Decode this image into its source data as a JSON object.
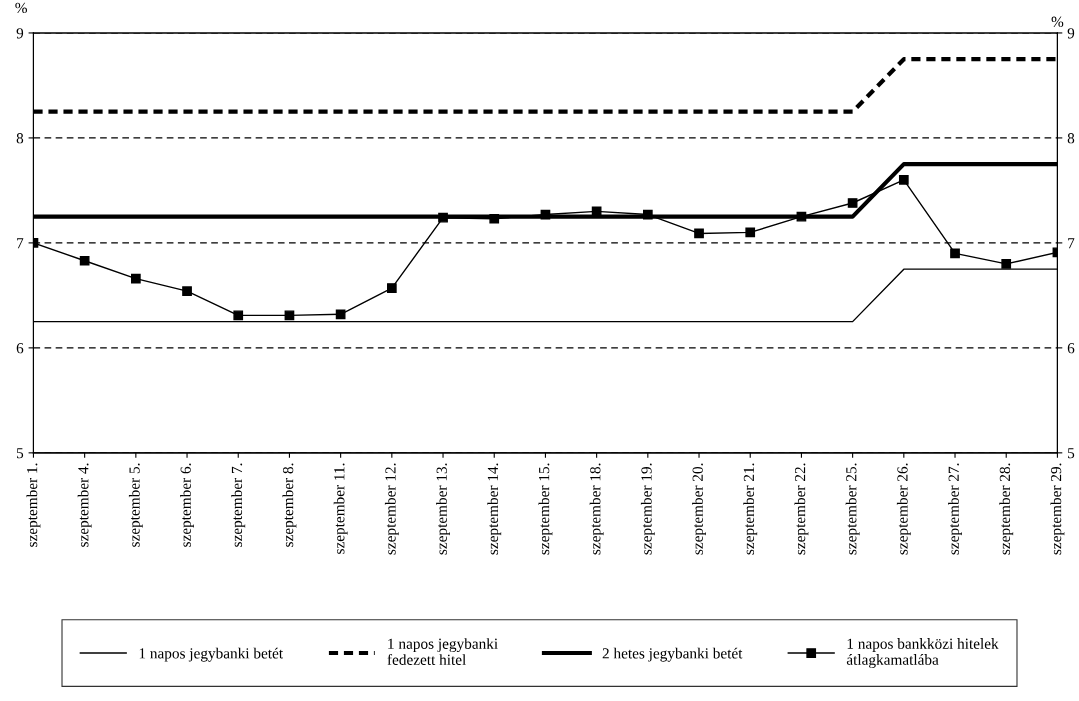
{
  "chart_data": {
    "type": "line",
    "ylabel": "%",
    "y2label": "%",
    "categories": [
      "szeptember 1.",
      "szeptember 4.",
      "szeptember 5.",
      "szeptember 6.",
      "szeptember 7.",
      "szeptember 8.",
      "szeptember 11.",
      "szeptember 12.",
      "szeptember 13.",
      "szeptember 14.",
      "szeptember 15.",
      "szeptember 18.",
      "szeptember 19.",
      "szeptember 20.",
      "szeptember 21.",
      "szeptember 22.",
      "szeptember 25.",
      "szeptember 26.",
      "szeptember 27.",
      "szeptember 28.",
      "szeptember 29."
    ],
    "series": [
      {
        "name": "1 napos jegybanki betét",
        "color": "#000000",
        "line_style": "solid",
        "marker": "none",
        "values": [
          6.25,
          6.25,
          6.25,
          6.25,
          6.25,
          6.25,
          6.25,
          6.25,
          6.25,
          6.25,
          6.25,
          6.25,
          6.25,
          6.25,
          6.25,
          6.25,
          6.25,
          6.75,
          6.75,
          6.75,
          6.75
        ]
      },
      {
        "name": "1 napos jegybanki fedezett hitel",
        "color": "#000000",
        "line_style": "dashed",
        "marker": "none",
        "values": [
          8.25,
          8.25,
          8.25,
          8.25,
          8.25,
          8.25,
          8.25,
          8.25,
          8.25,
          8.25,
          8.25,
          8.25,
          8.25,
          8.25,
          8.25,
          8.25,
          8.25,
          8.75,
          8.75,
          8.75,
          8.75
        ]
      },
      {
        "name": "2 hetes jegybanki betét",
        "color": "#000000",
        "line_style": "solid",
        "marker": "none",
        "values": [
          7.25,
          7.25,
          7.25,
          7.25,
          7.25,
          7.25,
          7.25,
          7.25,
          7.25,
          7.25,
          7.25,
          7.25,
          7.25,
          7.25,
          7.25,
          7.25,
          7.25,
          7.75,
          7.75,
          7.75,
          7.75
        ]
      },
      {
        "name": "1 napos bankközi hitelek átlagkamatlába",
        "color": "#000000",
        "line_style": "solid",
        "marker": "square",
        "values": [
          7.0,
          6.83,
          6.66,
          6.54,
          6.31,
          6.31,
          6.32,
          6.57,
          7.24,
          7.23,
          7.27,
          7.3,
          7.27,
          7.09,
          7.1,
          7.25,
          7.38,
          7.6,
          6.9,
          6.8,
          6.91
        ]
      }
    ],
    "ylim": [
      5,
      9
    ],
    "yticks": [
      5,
      6,
      7,
      8,
      9
    ],
    "y2lim": [
      5,
      9
    ],
    "y2ticks": [
      5,
      6,
      7,
      8,
      9
    ],
    "grid": "y",
    "legend": "bottom"
  }
}
